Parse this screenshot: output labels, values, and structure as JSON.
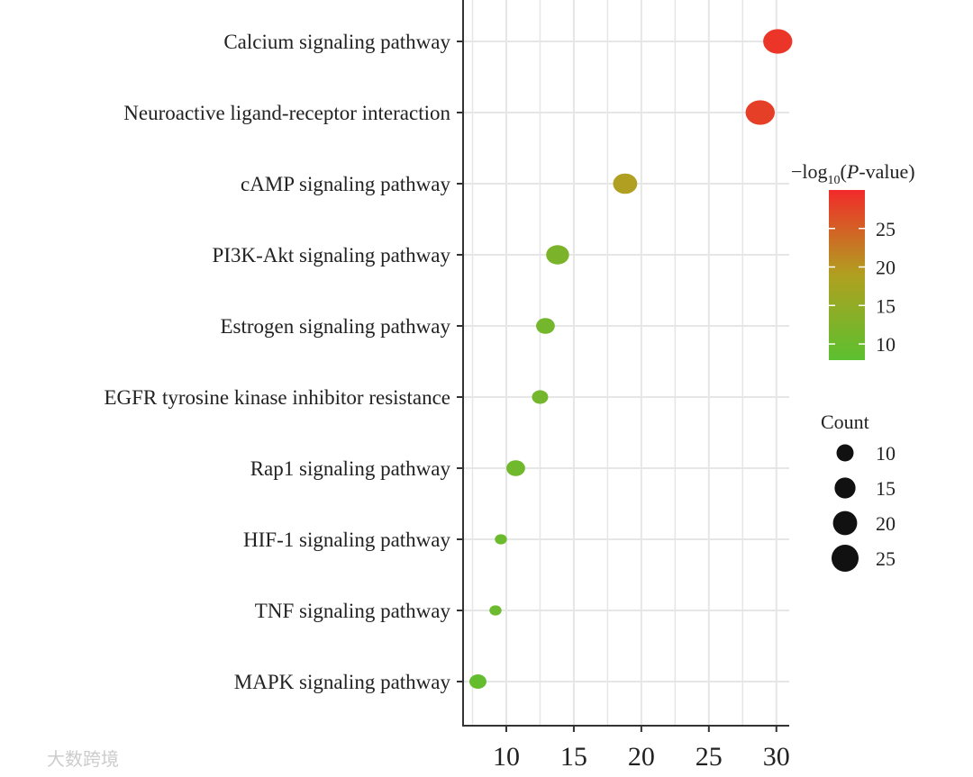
{
  "chart_data": {
    "type": "scatter",
    "title": "",
    "xlabel": "",
    "ylabel": "",
    "xlim": [
      6.8,
      30.95
    ],
    "xticks": [
      10,
      15,
      20,
      25,
      30
    ],
    "grid": true,
    "categories": [
      "Calcium signaling pathway",
      "Neuroactive ligand-receptor interaction",
      "cAMP signaling pathway",
      "PI3K-Akt signaling pathway",
      "Estrogen signaling pathway",
      "EGFR tyrosine kinase inhibitor resistance",
      "Rap1 signaling pathway",
      "HIF-1 signaling pathway",
      "TNF signaling pathway",
      "MAPK signaling pathway"
    ],
    "x": [
      30.1,
      28.8,
      18.8,
      13.8,
      12.9,
      12.5,
      10.7,
      9.6,
      9.2,
      7.9
    ],
    "count": [
      29,
      29,
      20,
      18,
      12,
      9,
      12,
      5,
      5,
      10
    ],
    "neg_log10_p": [
      29,
      28,
      19,
      12,
      11,
      11,
      10.5,
      10,
      10,
      9
    ],
    "color_legend": {
      "title_prefix": "−log",
      "title_sub": "10",
      "title_open": "(",
      "title_italic": "P",
      "title_suffix": "-value)",
      "range": [
        7.9,
        30
      ],
      "ticks": [
        "25",
        "20",
        "15",
        "10"
      ],
      "tick_values": [
        25,
        20,
        15,
        10
      ],
      "colors": {
        "low": "#5cc030",
        "mid": "#b0a020",
        "high": "#f22a2a"
      },
      "placement": "right"
    },
    "size_legend": {
      "title": "Count",
      "labels": [
        "10",
        "15",
        "20",
        "25"
      ],
      "values": [
        10,
        15,
        20,
        25
      ],
      "color": "#111111",
      "placement": "right"
    }
  },
  "watermark": "大数跨境"
}
